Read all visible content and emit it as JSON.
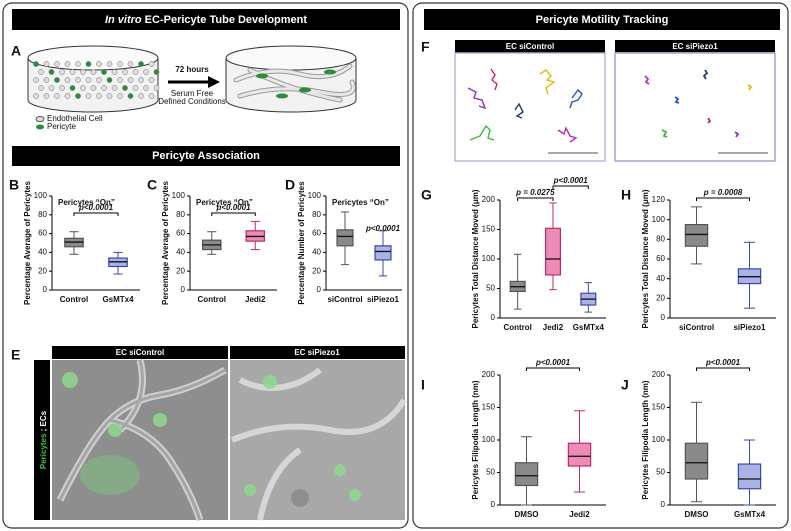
{
  "figure": {
    "left_header": {
      "italic": "In vitro",
      "rest": " EC-Pericyte Tube Development"
    },
    "right_header": "Pericyte Motility Tracking",
    "section_header": "Pericyte Association",
    "panel_a": {
      "label": "A",
      "time": "72 hours",
      "condition_1": "Serum Free",
      "condition_2": "Defined Conditions",
      "legend_ec": "Endothelial Cell",
      "legend_pericyte": "Pericyte"
    },
    "panel_e": {
      "label": "E",
      "left_image": "EC siControl",
      "right_image": "EC siPiezo1",
      "side_green": "Pericytes",
      "side_sep": " ; ",
      "side_white": "ECs"
    },
    "panel_f": {
      "label": "F",
      "left_image": "EC siControl",
      "right_image": "EC siPiezo1"
    }
  },
  "chart_data": [
    {
      "type": "box",
      "label": "B",
      "title": "Pericytes “On”",
      "ylabel": "Percentage Average of Pericytes",
      "ylim": [
        0,
        100
      ],
      "yticks": [
        0,
        20,
        40,
        60,
        80,
        100
      ],
      "annotations": [
        "p<0.0001"
      ],
      "groups": [
        {
          "name": "Control",
          "color": "#555555",
          "min": 38,
          "q1": 46,
          "median": 51,
          "q3": 55,
          "max": 62
        },
        {
          "name": "GsMTx4",
          "color": "#3a4aa8",
          "min": 17,
          "q1": 25,
          "median": 30,
          "q3": 34,
          "max": 40
        }
      ]
    },
    {
      "type": "box",
      "label": "C",
      "title": "Pericytes “On”",
      "ylabel": "Percentage Average of Pericytes",
      "ylim": [
        0,
        100
      ],
      "yticks": [
        0,
        20,
        40,
        60,
        80,
        100
      ],
      "annotations": [
        "p<0.0001"
      ],
      "groups": [
        {
          "name": "Control",
          "color": "#555555",
          "min": 38,
          "q1": 43,
          "median": 48,
          "q3": 53,
          "max": 62
        },
        {
          "name": "Jedi2",
          "color": "#c2286f",
          "min": 43,
          "q1": 52,
          "median": 57,
          "q3": 63,
          "max": 73
        }
      ]
    },
    {
      "type": "box",
      "label": "D",
      "title": "Pericytes “On”",
      "ylabel": "Percentage Number of Pericytes",
      "ylim": [
        0,
        100
      ],
      "yticks": [
        0,
        20,
        40,
        60,
        80,
        100
      ],
      "annotations": [
        "p<0.0001"
      ],
      "groups": [
        {
          "name": "siControl",
          "color": "#555555",
          "min": 27,
          "q1": 47,
          "median": 57,
          "q3": 64,
          "max": 83
        },
        {
          "name": "siPiezo1",
          "color": "#3a4aa8",
          "min": 15,
          "q1": 32,
          "median": 41,
          "q3": 47,
          "max": 63
        }
      ]
    },
    {
      "type": "box",
      "label": "G",
      "ylabel": "Pericytes Total Distance Moved (μm)",
      "ylim": [
        0,
        200
      ],
      "yticks": [
        0,
        50,
        100,
        150,
        200
      ],
      "annotations": [
        "p = 0.0275",
        "p<0.0001"
      ],
      "groups": [
        {
          "name": "Control",
          "color": "#555555",
          "min": 15,
          "q1": 45,
          "median": 53,
          "q3": 62,
          "max": 108
        },
        {
          "name": "Jedi2",
          "color": "#c2286f",
          "min": 48,
          "q1": 73,
          "median": 100,
          "q3": 152,
          "max": 195
        },
        {
          "name": "GsMTx4",
          "color": "#3a4aa8",
          "min": 10,
          "q1": 22,
          "median": 32,
          "q3": 42,
          "max": 60
        }
      ]
    },
    {
      "type": "box",
      "label": "H",
      "ylabel": "Pericytes Total Distance Moved (μm)",
      "ylim": [
        0,
        120
      ],
      "yticks": [
        0,
        20,
        40,
        60,
        80,
        100,
        120
      ],
      "annotations": [
        "p = 0.0008"
      ],
      "groups": [
        {
          "name": "siControl",
          "color": "#555555",
          "min": 55,
          "q1": 73,
          "median": 85,
          "q3": 95,
          "max": 113
        },
        {
          "name": "siPiezo1",
          "color": "#3a4aa8",
          "min": 10,
          "q1": 35,
          "median": 42,
          "q3": 50,
          "max": 77
        }
      ]
    },
    {
      "type": "box",
      "label": "I",
      "ylabel": "Pericytes Filipodia Length (nm)",
      "ylim": [
        0,
        200
      ],
      "yticks": [
        0,
        50,
        100,
        150,
        200
      ],
      "annotations": [
        "p<0.0001"
      ],
      "groups": [
        {
          "name": "DMSO",
          "color": "#555555",
          "min": 0,
          "q1": 30,
          "median": 45,
          "q3": 65,
          "max": 105
        },
        {
          "name": "Jedi2",
          "color": "#c2286f",
          "min": 20,
          "q1": 60,
          "median": 75,
          "q3": 95,
          "max": 145
        }
      ]
    },
    {
      "type": "box",
      "label": "J",
      "ylabel": "Pericytes Filipodia Length (nm)",
      "ylim": [
        0,
        200
      ],
      "yticks": [
        0,
        50,
        100,
        150,
        200
      ],
      "annotations": [
        "p<0.0001"
      ],
      "groups": [
        {
          "name": "DMSO",
          "color": "#555555",
          "min": 5,
          "q1": 40,
          "median": 65,
          "q3": 95,
          "max": 158
        },
        {
          "name": "GsMTx4",
          "color": "#3a4aa8",
          "min": 0,
          "q1": 25,
          "median": 40,
          "q3": 63,
          "max": 100
        }
      ]
    }
  ]
}
